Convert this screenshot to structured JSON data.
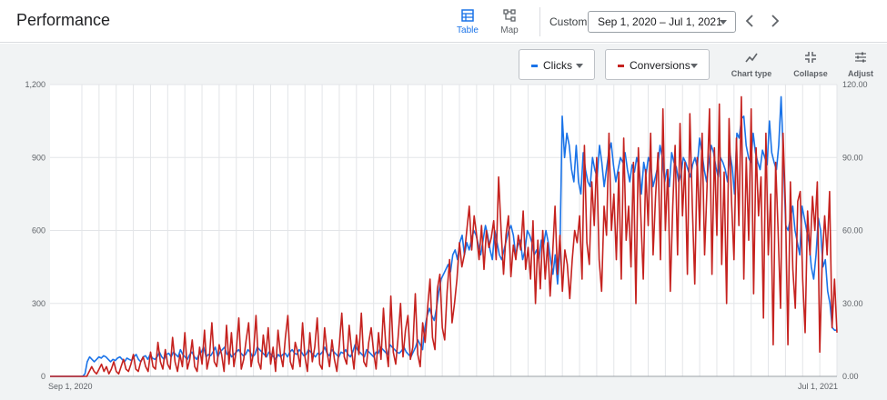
{
  "header": {
    "title": "Performance",
    "views": [
      {
        "label": "Table",
        "icon": "table-icon",
        "active": true
      },
      {
        "label": "Map",
        "icon": "map-icon",
        "active": false
      }
    ],
    "date_range_label": "Custom",
    "date_range_value": "Sep 1, 2020 – Jul 1, 2021"
  },
  "metrics": [
    {
      "label": "Clicks",
      "color": "#1a73e8"
    },
    {
      "label": "Conversions",
      "color": "#c5221f"
    }
  ],
  "tools": [
    {
      "label": "Chart type",
      "icon": "line-chart-icon"
    },
    {
      "label": "Collapse",
      "icon": "collapse-icon"
    },
    {
      "label": "Adjust",
      "icon": "tune-icon"
    }
  ],
  "chart_data": {
    "type": "line",
    "x_start_label": "Sep 1, 2020",
    "x_end_label": "Jul 1, 2021",
    "y_left": {
      "ticks": [
        "0",
        "300",
        "600",
        "900",
        "1,200"
      ],
      "range": [
        0,
        1200
      ]
    },
    "y_right": {
      "ticks": [
        "0.00",
        "30.00",
        "60.00",
        "90.00",
        "120.00"
      ],
      "range": [
        0,
        120
      ]
    },
    "grid": true,
    "series": [
      {
        "name": "Clicks",
        "axis": "left",
        "color": "#1a73e8",
        "values": [
          0,
          0,
          0,
          0,
          0,
          0,
          0,
          0,
          0,
          0,
          0,
          0,
          0,
          0,
          0,
          10,
          60,
          80,
          70,
          60,
          70,
          80,
          75,
          85,
          80,
          70,
          60,
          70,
          65,
          75,
          80,
          70,
          60,
          75,
          70,
          65,
          80,
          90,
          70,
          60,
          80,
          85,
          70,
          90,
          75,
          70,
          80,
          100,
          80,
          70,
          90,
          95,
          80,
          100,
          90,
          80,
          110,
          90,
          80,
          70,
          90,
          100,
          80,
          70,
          90,
          100,
          120,
          80,
          90,
          85,
          100,
          120,
          80,
          100,
          110,
          120,
          90,
          100,
          80,
          90,
          100,
          110,
          95,
          85,
          90,
          110,
          100,
          80,
          90,
          120,
          110,
          100,
          90,
          80,
          100,
          90,
          80,
          70,
          90,
          80,
          90,
          95,
          80,
          100,
          110,
          95,
          90,
          110,
          100,
          85,
          90,
          110,
          100,
          90,
          80,
          95,
          90,
          100,
          120,
          95,
          85,
          110,
          100,
          90,
          80,
          100,
          95,
          110,
          90,
          80,
          100,
          130,
          110,
          100,
          90,
          80,
          110,
          100,
          90,
          80,
          100,
          95,
          120,
          110,
          100,
          90,
          130,
          120,
          110,
          100,
          95,
          105,
          120,
          100,
          90,
          80,
          100,
          120,
          150,
          130,
          110,
          200,
          250,
          280,
          250,
          230,
          280,
          350,
          400,
          420,
          440,
          460,
          430,
          500,
          520,
          480,
          550,
          580,
          500,
          550,
          520,
          560,
          600,
          580,
          540,
          500,
          560,
          620,
          580,
          520,
          480,
          600,
          550,
          500,
          480,
          520,
          560,
          600,
          620,
          580,
          500,
          540,
          560,
          480,
          520,
          600,
          580,
          550,
          500,
          520,
          480,
          560,
          540,
          600,
          550,
          480,
          420,
          500,
          380,
          520,
          1070,
          900,
          1000,
          950,
          850,
          800,
          950,
          800,
          750,
          920,
          850,
          800,
          780,
          900,
          850,
          820,
          950,
          880,
          780,
          850,
          920,
          960,
          870,
          800,
          850,
          900,
          880,
          920,
          850,
          800,
          870,
          840,
          900,
          860,
          750,
          880,
          830,
          900,
          870,
          780,
          820,
          860,
          950,
          900,
          800,
          850,
          780,
          920,
          880,
          860,
          800,
          830,
          900,
          880,
          850,
          820,
          870,
          900,
          860,
          980,
          920,
          850,
          800,
          880,
          950,
          920,
          860,
          820,
          900,
          880,
          850,
          800,
          920,
          860,
          750,
          1000,
          980,
          1060,
          1070,
          950,
          900,
          880,
          1000,
          920,
          880,
          850,
          930,
          900,
          870,
          1050,
          920,
          880,
          850,
          950,
          1150,
          900,
          620,
          600,
          650,
          700,
          600,
          550,
          500,
          700,
          650,
          600,
          550,
          450,
          400,
          500,
          650,
          600,
          450,
          480,
          350,
          300,
          200,
          190,
          190
        ]
      },
      {
        "name": "Conversions",
        "axis": "right",
        "color": "#c5221f",
        "values": [
          0,
          0,
          0,
          0,
          0,
          0,
          0,
          0,
          0,
          0,
          0,
          0,
          0,
          0,
          0,
          0,
          2,
          4,
          2,
          1,
          3,
          5,
          2,
          4,
          1,
          3,
          6,
          2,
          1,
          4,
          7,
          3,
          2,
          5,
          9,
          3,
          2,
          6,
          8,
          4,
          2,
          10,
          4,
          3,
          14,
          6,
          3,
          11,
          5,
          3,
          16,
          6,
          2,
          9,
          4,
          18,
          3,
          7,
          15,
          4,
          2,
          12,
          5,
          19,
          3,
          8,
          22,
          6,
          4,
          13,
          9,
          2,
          21,
          5,
          18,
          4,
          11,
          24,
          3,
          7,
          15,
          22,
          4,
          10,
          25,
          6,
          3,
          17,
          8,
          20,
          5,
          12,
          2,
          19,
          9,
          4,
          16,
          25,
          6,
          3,
          14,
          10,
          4,
          22,
          8,
          2,
          18,
          6,
          12,
          24,
          5,
          3,
          20,
          10,
          4,
          15,
          7,
          2,
          13,
          26,
          8,
          5,
          21,
          11,
          3,
          17,
          9,
          26,
          6,
          4,
          14,
          20,
          10,
          3,
          18,
          7,
          28,
          12,
          4,
          33,
          10,
          5,
          16,
          30,
          8,
          19,
          25,
          7,
          12,
          34,
          9,
          4,
          22,
          14,
          28,
          40,
          16,
          11,
          36,
          42,
          20,
          15,
          35,
          48,
          22,
          30,
          40,
          55,
          45,
          50,
          60,
          70,
          52,
          66,
          58,
          48,
          62,
          44,
          60,
          53,
          57,
          64,
          48,
          82,
          60,
          42,
          58,
          66,
          41,
          54,
          48,
          58,
          52,
          68,
          44,
          53,
          40,
          64,
          30,
          56,
          36,
          60,
          40,
          55,
          33,
          50,
          70,
          42,
          58,
          35,
          52,
          46,
          32,
          48,
          60,
          55,
          66,
          40,
          95,
          55,
          46,
          80,
          62,
          90,
          48,
          35,
          70,
          58,
          100,
          60,
          75,
          48,
          84,
          40,
          98,
          56,
          70,
          45,
          88,
          30,
          94,
          66,
          40,
          85,
          62,
          100,
          50,
          74,
          92,
          48,
          110,
          60,
          85,
          35,
          70,
          95,
          50,
          104,
          66,
          88,
          42,
          108,
          70,
          38,
          90,
          60,
          100,
          50,
          78,
          110,
          42,
          94,
          58,
          112,
          46,
          84,
          30,
          106,
          72,
          48,
          98,
          62,
          115,
          40,
          90,
          56,
          110,
          34,
          94,
          66,
          82,
          24,
          100,
          50,
          75,
          13,
          88,
          60,
          28,
          100,
          70,
          13,
          80,
          44,
          28,
          72,
          76,
          40,
          18,
          68,
          50,
          74,
          60,
          80,
          10,
          48,
          66,
          50,
          76,
          20,
          40,
          18
        ]
      }
    ]
  }
}
